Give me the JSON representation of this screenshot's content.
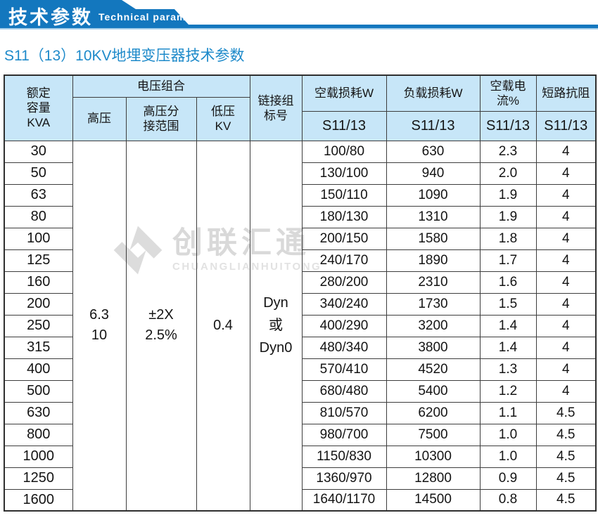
{
  "banner": {
    "title": "技术参数",
    "subtitle": "Technical parameter"
  },
  "page": {
    "heading": "S11（13）10KV地埋变压器技术参数"
  },
  "colors": {
    "banner_blue": "#1377be",
    "heading_blue": "#1e8aca",
    "table_header_bg": "#c7e6f8",
    "table_border": "#3d3d3d",
    "watermark_gray": "#d9d9d9"
  },
  "watermark": {
    "name": "创联汇通",
    "romanized": "CHUANGLIANHUITONG"
  },
  "table": {
    "header": {
      "capacity": "额定\n容量\nKVA",
      "voltage_group": "电压组合",
      "high_voltage": "高压",
      "tap_range": "高压分\n接范围",
      "low_voltage": "低压\nKV",
      "vector_group": "链接组\n标号",
      "no_load_loss": "空载损耗W",
      "load_loss": "负载损耗W",
      "no_load_current": "空载电流%",
      "impedance": "短路抗阻",
      "series": "S11/13"
    },
    "merged": {
      "high_voltage": "6.3\n10",
      "tap_range": "±2X\n2.5%",
      "low_voltage": "0.4",
      "vector_group": "Dyn\n或\nDyn0"
    },
    "rows": [
      {
        "kva": "30",
        "no_load_loss": "100/80",
        "load_loss": "630",
        "no_load_current": "2.3",
        "impedance": "4"
      },
      {
        "kva": "50",
        "no_load_loss": "130/100",
        "load_loss": "940",
        "no_load_current": "2.0",
        "impedance": "4"
      },
      {
        "kva": "63",
        "no_load_loss": "150/110",
        "load_loss": "1090",
        "no_load_current": "1.9",
        "impedance": "4"
      },
      {
        "kva": "80",
        "no_load_loss": "180/130",
        "load_loss": "1310",
        "no_load_current": "1.9",
        "impedance": "4"
      },
      {
        "kva": "100",
        "no_load_loss": "200/150",
        "load_loss": "1580",
        "no_load_current": "1.8",
        "impedance": "4"
      },
      {
        "kva": "125",
        "no_load_loss": "240/170",
        "load_loss": "1890",
        "no_load_current": "1.7",
        "impedance": "4"
      },
      {
        "kva": "160",
        "no_load_loss": "280/200",
        "load_loss": "2310",
        "no_load_current": "1.6",
        "impedance": "4"
      },
      {
        "kva": "200",
        "no_load_loss": "340/240",
        "load_loss": "1730",
        "no_load_current": "1.5",
        "impedance": "4"
      },
      {
        "kva": "250",
        "no_load_loss": "400/290",
        "load_loss": "3200",
        "no_load_current": "1.4",
        "impedance": "4"
      },
      {
        "kva": "315",
        "no_load_loss": "480/340",
        "load_loss": "3800",
        "no_load_current": "1.4",
        "impedance": "4"
      },
      {
        "kva": "400",
        "no_load_loss": "570/410",
        "load_loss": "4520",
        "no_load_current": "1.3",
        "impedance": "4"
      },
      {
        "kva": "500",
        "no_load_loss": "680/480",
        "load_loss": "5400",
        "no_load_current": "1.2",
        "impedance": "4"
      },
      {
        "kva": "630",
        "no_load_loss": "810/570",
        "load_loss": "6200",
        "no_load_current": "1.1",
        "impedance": "4.5"
      },
      {
        "kva": "800",
        "no_load_loss": "980/700",
        "load_loss": "7500",
        "no_load_current": "1.0",
        "impedance": "4.5"
      },
      {
        "kva": "1000",
        "no_load_loss": "1150/830",
        "load_loss": "10300",
        "no_load_current": "1.0",
        "impedance": "4.5"
      },
      {
        "kva": "1250",
        "no_load_loss": "1360/970",
        "load_loss": "12800",
        "no_load_current": "0.9",
        "impedance": "4.5"
      },
      {
        "kva": "1600",
        "no_load_loss": "1640/1170",
        "load_loss": "14500",
        "no_load_current": "0.8",
        "impedance": "4.5"
      }
    ]
  }
}
